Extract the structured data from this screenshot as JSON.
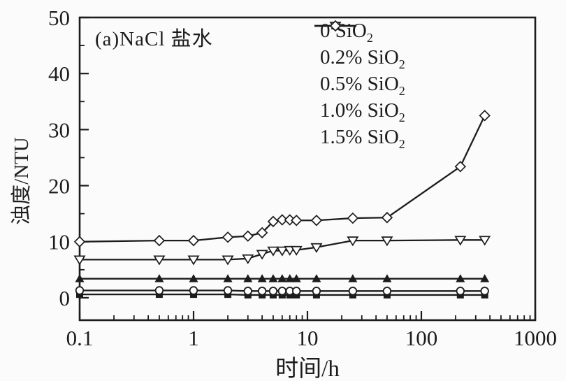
{
  "figure": {
    "background": "#fbfbfb",
    "ink_color": "#1c1c1c"
  },
  "chart_data": {
    "type": "line",
    "title": "",
    "annotation": "(a)NaCl 盐水",
    "xlabel": "时间/h",
    "ylabel": "浊度/NTU",
    "x_scale": "log",
    "xlim": [
      0.1,
      1000
    ],
    "ylim": [
      -4,
      50
    ],
    "x_tick_values": [
      0.1,
      1,
      10,
      100,
      1000
    ],
    "x_tick_labels": [
      "0.1",
      "1",
      "10",
      "100",
      "1000"
    ],
    "y_tick_values": [
      0,
      10,
      20,
      30,
      40,
      50
    ],
    "y_tick_labels": [
      "0",
      "10",
      "20",
      "30",
      "40",
      "50"
    ],
    "y_minor_tick_values": [
      5,
      15,
      25,
      35,
      45
    ],
    "grid": false,
    "legend_position": "top-center-inside",
    "x": [
      0.1,
      0.5,
      1,
      2,
      3,
      4,
      5,
      6,
      7,
      8,
      12,
      25,
      50,
      220,
      360
    ],
    "series": [
      {
        "name": "0 SiO2",
        "label_base": "0 SiO",
        "label_sub": "2",
        "marker": "filled-square",
        "values": [
          0.6,
          0.6,
          0.6,
          0.6,
          0.5,
          0.5,
          0.5,
          0.5,
          0.5,
          0.5,
          0.5,
          0.5,
          0.5,
          0.5,
          0.5
        ]
      },
      {
        "name": "0.2% SiO2",
        "label_base": "0.2% SiO",
        "label_sub": "2",
        "marker": "open-circle",
        "values": [
          1.3,
          1.3,
          1.3,
          1.3,
          1.2,
          1.2,
          1.2,
          1.2,
          1.2,
          1.2,
          1.2,
          1.2,
          1.2,
          1.2,
          1.2
        ]
      },
      {
        "name": "0.5% SiO2",
        "label_base": "0.5% SiO",
        "label_sub": "2",
        "marker": "filled-triangle",
        "values": [
          3.4,
          3.4,
          3.4,
          3.4,
          3.4,
          3.4,
          3.4,
          3.4,
          3.4,
          3.4,
          3.4,
          3.4,
          3.4,
          3.4,
          3.4
        ]
      },
      {
        "name": "1.0% SiO2",
        "label_base": "1.0% SiO",
        "label_sub": "2",
        "marker": "open-triangle-down",
        "values": [
          6.8,
          6.8,
          6.8,
          6.8,
          7.0,
          7.8,
          8.4,
          8.4,
          8.5,
          8.5,
          9.0,
          10.2,
          10.2,
          10.3,
          10.3
        ]
      },
      {
        "name": "1.5% SiO2",
        "label_base": "1.5% SiO",
        "label_sub": "2",
        "marker": "open-diamond",
        "values": [
          10.0,
          10.2,
          10.2,
          10.8,
          11.0,
          11.6,
          13.6,
          13.9,
          13.9,
          13.8,
          13.8,
          14.2,
          14.3,
          23.4,
          32.5
        ]
      }
    ]
  }
}
